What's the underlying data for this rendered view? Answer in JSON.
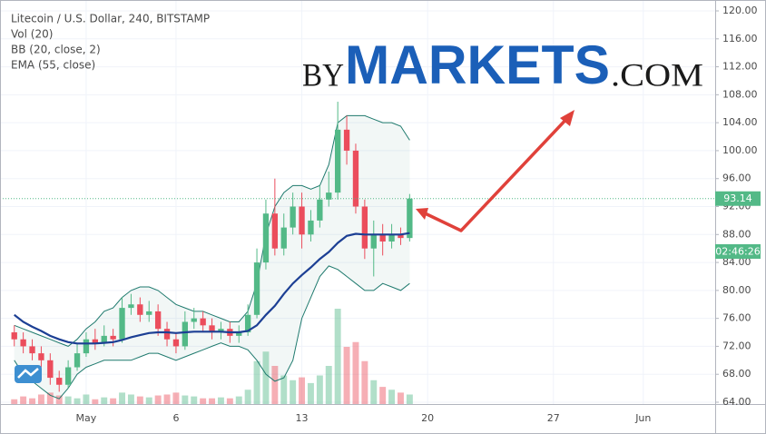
{
  "header": {
    "lines": [
      "Litecoin / U.S. Dollar, 240, BITSTAMP",
      "Vol (20)",
      "BB (20, close, 2)",
      "EMA (55, close)"
    ]
  },
  "logo": {
    "by": "BY",
    "markets": "MARKETS",
    "com": ".COM"
  },
  "countdown": "02:46:26",
  "chart_data": {
    "type": "candlestick",
    "up_color": "#53b987",
    "down_color": "#eb4d5c",
    "ema_color": "#1c3f94",
    "bb_color": "#1f7a6e",
    "xlim": [
      -3.39,
      36
    ],
    "xticks": [
      {
        "value": 1,
        "label": "May"
      },
      6,
      13,
      20,
      27,
      {
        "value": 32,
        "label": "Jun"
      }
    ],
    "ylim": [
      64,
      120
    ],
    "yticks": [
      {
        "value": 64,
        "label": "64.00"
      },
      {
        "value": 68,
        "label": "68.00"
      },
      {
        "value": 72,
        "label": "72.00"
      },
      {
        "value": 76,
        "label": "76.00"
      },
      {
        "value": 80,
        "label": "80.00"
      },
      {
        "value": 84,
        "label": "84.00"
      },
      {
        "value": 88,
        "label": "88.00"
      },
      {
        "value": 92,
        "label": "92.00"
      },
      {
        "value": 96,
        "label": "96.00"
      },
      {
        "value": 100,
        "label": "100.00"
      },
      {
        "value": 104,
        "label": "104.00"
      },
      {
        "value": 108,
        "label": "108.00"
      },
      {
        "value": 112,
        "label": "112.00"
      },
      {
        "value": 116,
        "label": "116.00"
      },
      {
        "value": 120,
        "label": "120.00"
      }
    ],
    "grid": true,
    "x": [
      -3,
      -2.5,
      -2,
      -1.5,
      -1,
      -0.5,
      0,
      0.5,
      1,
      1.5,
      2,
      2.5,
      3,
      3.5,
      4,
      4.5,
      5,
      5.5,
      6,
      6.5,
      7,
      7.5,
      8,
      8.5,
      9,
      9.5,
      10,
      10.5,
      11,
      11.5,
      12,
      12.5,
      13,
      13.5,
      14,
      14.5,
      15,
      15.5,
      16,
      16.5,
      17,
      17.5,
      18,
      18.5,
      19
    ],
    "open": [
      74,
      73,
      72,
      71,
      70,
      67.5,
      66.5,
      69,
      71,
      73,
      72.5,
      73.5,
      73,
      77.5,
      78,
      76.5,
      77,
      74.5,
      73,
      72,
      75.5,
      76,
      75,
      74,
      74.5,
      73.5,
      74,
      76.5,
      84,
      91,
      86,
      89,
      92,
      88,
      90,
      93,
      94,
      103,
      100,
      92,
      86,
      88,
      87,
      88,
      87.5
    ],
    "high": [
      75,
      74,
      73,
      72,
      71,
      68.5,
      70,
      72.5,
      74,
      74.5,
      75,
      74.5,
      79,
      79.5,
      79,
      78.5,
      78,
      75.5,
      74,
      77,
      77.5,
      77,
      76,
      75.5,
      75.5,
      75,
      78,
      86,
      93,
      96,
      91,
      94,
      94,
      91.5,
      95,
      97,
      107,
      105,
      101,
      93,
      90,
      89.5,
      89.5,
      89,
      93.8
    ],
    "low": [
      72,
      71,
      70,
      69,
      66.5,
      65.5,
      66,
      68.5,
      70.5,
      71.5,
      72,
      72,
      72.5,
      76.5,
      75.5,
      75.5,
      73.5,
      72,
      71,
      71.5,
      74.5,
      74,
      73,
      73,
      72.5,
      72.5,
      73.5,
      76,
      83,
      85,
      85,
      88,
      86,
      87,
      89,
      92,
      93,
      98,
      91,
      84.5,
      82,
      85,
      86,
      86.5,
      87
    ],
    "close": [
      73,
      72,
      71,
      70,
      67.5,
      66.5,
      69,
      71,
      73,
      72.5,
      73.5,
      73,
      77.5,
      78,
      76.5,
      77,
      74.5,
      73,
      72,
      75.5,
      76,
      75,
      74,
      74.5,
      73.5,
      74,
      76.5,
      84,
      91,
      86,
      89,
      92,
      88,
      90,
      93,
      94,
      103,
      100,
      92,
      86,
      88,
      87,
      88,
      87.5,
      93.14
    ],
    "volume": [
      5,
      8,
      6,
      10,
      12,
      9,
      8,
      6,
      10,
      5,
      7,
      6,
      12,
      10,
      8,
      7,
      9,
      10,
      12,
      9,
      8,
      6,
      6,
      7,
      6,
      8,
      15,
      45,
      55,
      40,
      30,
      25,
      28,
      22,
      30,
      40,
      100,
      60,
      65,
      45,
      25,
      18,
      15,
      12,
      10
    ],
    "ema": [
      76.5,
      75.5,
      74.8,
      74.2,
      73.5,
      73,
      72.6,
      72.4,
      72.4,
      72.4,
      72.5,
      72.6,
      72.9,
      73.3,
      73.6,
      73.9,
      74,
      74,
      73.9,
      74,
      74.1,
      74.1,
      74.1,
      74.1,
      74,
      74,
      74.2,
      75,
      76.5,
      77.8,
      79.5,
      81,
      82.2,
      83.3,
      84.5,
      85.5,
      86.8,
      87.8,
      88.1,
      88,
      88,
      88,
      88,
      88,
      88.2
    ],
    "bb_upper": [
      75,
      74.5,
      74,
      73.5,
      73,
      72.5,
      72,
      73,
      74.5,
      75.5,
      77,
      77.5,
      79,
      80,
      80.5,
      80.5,
      80,
      79,
      78,
      77.5,
      77,
      77,
      76.5,
      76,
      75.5,
      75.5,
      77,
      81,
      88,
      92,
      94,
      95,
      95,
      94.5,
      95,
      98,
      104,
      105,
      105,
      105,
      104.5,
      104,
      104,
      103.5,
      101.5
    ],
    "bb_lower": [
      70,
      68,
      67,
      66,
      65,
      64.5,
      66,
      68,
      69,
      69.5,
      70,
      70,
      70,
      70,
      70.5,
      71,
      71,
      70.5,
      70,
      70.5,
      71,
      71.5,
      72,
      72.5,
      72,
      72,
      71.5,
      70,
      68,
      67,
      67.5,
      70,
      76,
      79,
      82,
      83.5,
      83,
      82,
      81,
      80,
      80,
      81,
      80.5,
      80,
      81
    ]
  }
}
